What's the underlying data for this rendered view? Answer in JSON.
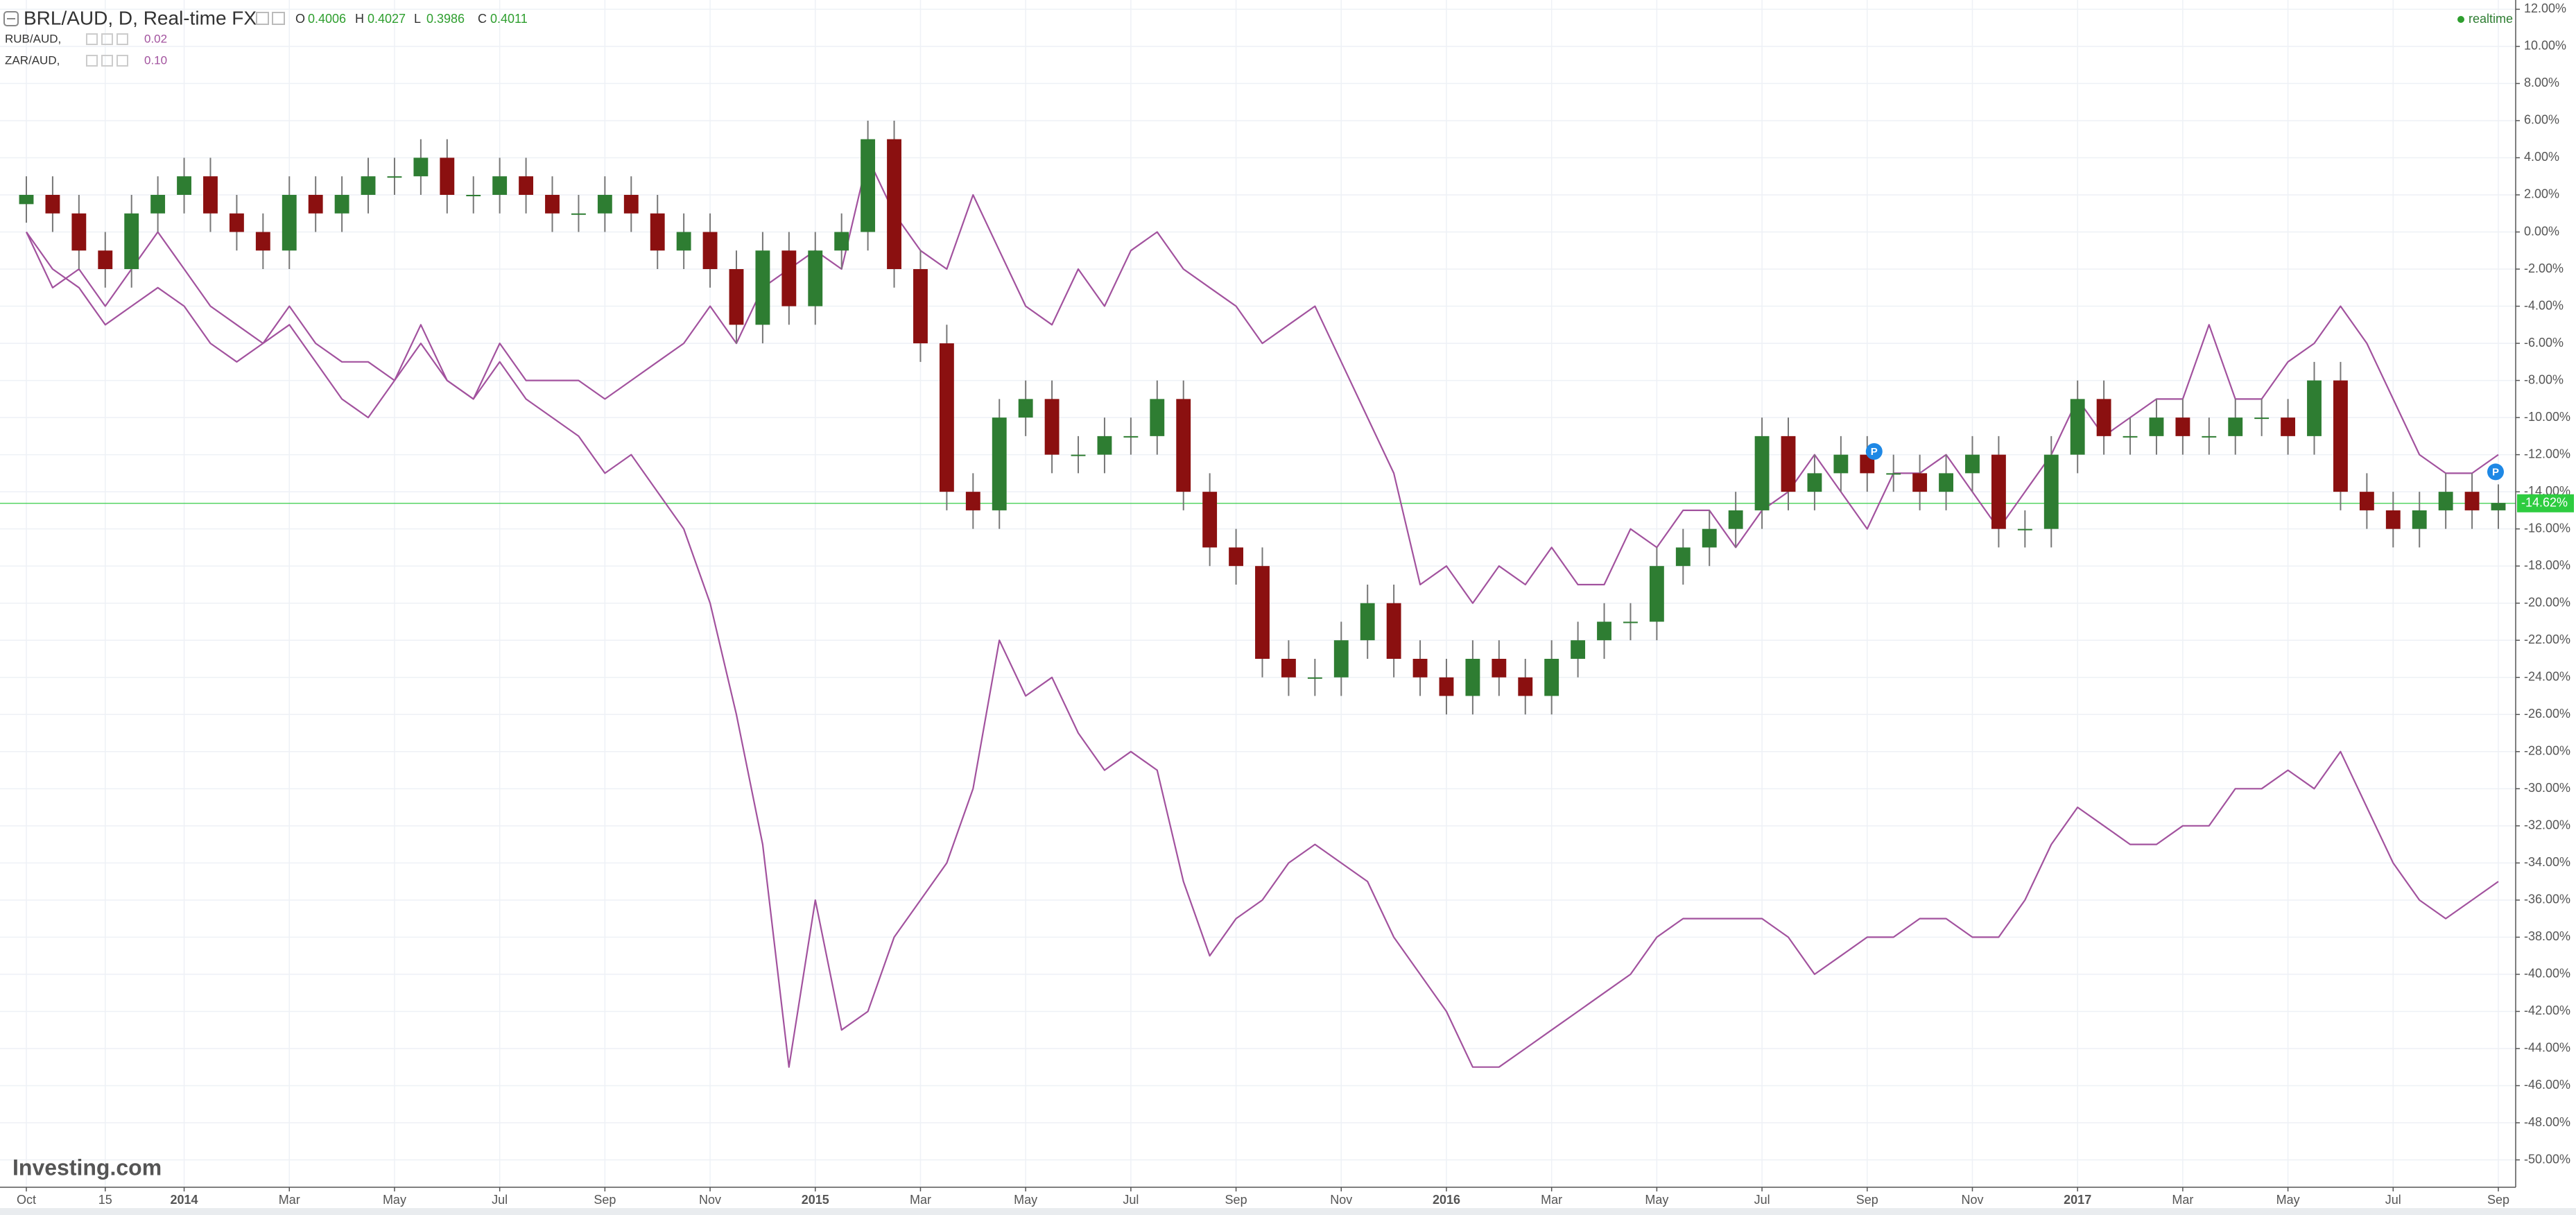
{
  "chart_data": {
    "type": "candlestick",
    "title": "BRL/AUD, D, Real-time FX",
    "ohlc": [
      {
        "label": "O",
        "value": 0.4006
      },
      {
        "label": "H",
        "value": 0.4027
      },
      {
        "label": "L",
        "value": 0.3986
      },
      {
        "label": "C",
        "value": 0.4011
      }
    ],
    "status": "realtime",
    "watermark": "Investing.com",
    "event_marker": "P",
    "categories": [
      "Oct",
      null,
      null,
      "15",
      null,
      null,
      "2014",
      null,
      null,
      null,
      "Mar",
      null,
      null,
      null,
      "May",
      null,
      null,
      null,
      "Jul",
      null,
      null,
      null,
      "Sep",
      null,
      null,
      null,
      "Nov",
      null,
      null,
      null,
      "2015",
      null,
      null,
      null,
      "Mar",
      null,
      null,
      null,
      "May",
      null,
      null,
      null,
      "Jul",
      null,
      null,
      null,
      "Sep",
      null,
      null,
      null,
      "Nov",
      null,
      null,
      null,
      "2016",
      null,
      null,
      null,
      "Mar",
      null,
      null,
      null,
      "May",
      null,
      null,
      null,
      "Jul",
      null,
      null,
      null,
      "Sep",
      null,
      null,
      null,
      "Nov",
      null,
      null,
      null,
      "2017",
      null,
      null,
      null,
      "Mar",
      null,
      null,
      null,
      "May",
      null,
      null,
      null,
      "Jul",
      null,
      null,
      null,
      "Sep"
    ],
    "series": [
      {
        "name": "BRL/AUD",
        "type": "candlestick",
        "up_color": "#2e7d32",
        "down_color": "#8b1010",
        "wick_color": "#777777",
        "open": [
          1.5,
          2,
          1,
          -1,
          -2,
          1,
          2,
          3,
          1,
          0,
          -1,
          2,
          1,
          2,
          3,
          3,
          4,
          2,
          2,
          3,
          2,
          1,
          1,
          2,
          1,
          -1,
          0,
          -2,
          -5,
          -1,
          -4,
          -1,
          0,
          5,
          -2,
          -6,
          -14,
          -15,
          -10,
          -9,
          -12,
          -12,
          -11,
          -11,
          -9,
          -14,
          -17,
          -18,
          -23,
          -24,
          -24,
          -22,
          -20,
          -23,
          -24,
          -25,
          -23,
          -24,
          -25,
          -23,
          -22,
          -21,
          -21,
          -18,
          -17,
          -16,
          -15,
          -11,
          -14,
          -13,
          -12,
          -13,
          -13,
          -14,
          -13,
          -12,
          -16,
          -16,
          -12,
          -9,
          -11,
          -11,
          -10,
          -11,
          -11,
          -10,
          -10,
          -11,
          -8,
          -14,
          -15,
          -16,
          -15,
          -14,
          -15
        ],
        "high": [
          3,
          3,
          2,
          0,
          2,
          3,
          4,
          4,
          2,
          1,
          3,
          3,
          3,
          4,
          4,
          5,
          5,
          3,
          4,
          4,
          3,
          2,
          3,
          3,
          2,
          1,
          1,
          -1,
          0,
          0,
          0,
          1,
          6,
          6,
          -1,
          -5,
          -13,
          -9,
          -8,
          -8,
          -11,
          -10,
          -10,
          -8,
          -8,
          -13,
          -16,
          -17,
          -22,
          -23,
          -21,
          -19,
          -19,
          -22,
          -23,
          -22,
          -22,
          -23,
          -22,
          -21,
          -20,
          -20,
          -17,
          -16,
          -15,
          -14,
          -10,
          -10,
          -12,
          -11,
          -11,
          -12,
          -12,
          -12,
          -11,
          -11,
          -15,
          -11,
          -8,
          -8,
          -10,
          -9,
          -9,
          -10,
          -9,
          -9,
          -9,
          -7,
          -7,
          -13,
          -14,
          -14,
          -13,
          -13,
          -13.6
        ],
        "low": [
          0.5,
          0,
          -2,
          -3,
          -3,
          0,
          1,
          0,
          -1,
          -2,
          -2,
          0,
          0,
          1,
          2,
          2,
          1,
          1,
          1,
          1,
          0,
          0,
          0,
          0,
          -2,
          -2,
          -3,
          -6,
          -6,
          -5,
          -5,
          -2,
          -1,
          -3,
          -7,
          -15,
          -16,
          -16,
          -11,
          -13,
          -13,
          -13,
          -12,
          -12,
          -15,
          -18,
          -19,
          -24,
          -25,
          -25,
          -25,
          -23,
          -24,
          -25,
          -26,
          -26,
          -25,
          -26,
          -26,
          -24,
          -23,
          -22,
          -22,
          -19,
          -18,
          -17,
          -16,
          -15,
          -15,
          -14,
          -14,
          -14,
          -15,
          -15,
          -14,
          -17,
          -17,
          -17,
          -13,
          -12,
          -12,
          -12,
          -12,
          -12,
          -12,
          -11,
          -12,
          -12,
          -15,
          -16,
          -17,
          -17,
          -16,
          -16,
          -16
        ],
        "close": [
          2,
          1,
          -1,
          -2,
          1,
          2,
          3,
          1,
          0,
          -1,
          2,
          1,
          2,
          3,
          3,
          4,
          2,
          2,
          3,
          2,
          1,
          1,
          2,
          1,
          -1,
          0,
          -2,
          -5,
          -1,
          -4,
          -1,
          0,
          5,
          -2,
          -6,
          -14,
          -15,
          -10,
          -9,
          -12,
          -12,
          -11,
          -11,
          -9,
          -14,
          -17,
          -18,
          -23,
          -24,
          -24,
          -22,
          -20,
          -23,
          -24,
          -25,
          -23,
          -24,
          -25,
          -23,
          -22,
          -21,
          -21,
          -18,
          -17,
          -16,
          -15,
          -11,
          -14,
          -13,
          -12,
          -13,
          -13,
          -14,
          -13,
          -12,
          -16,
          -16,
          -12,
          -9,
          -11,
          -11,
          -10,
          -11,
          -11,
          -10,
          -10,
          -11,
          -8,
          -14,
          -15,
          -16,
          -15,
          -14,
          -15,
          -14.6
        ]
      },
      {
        "name": "RUB/AUD,",
        "type": "line",
        "color": "#a2529e",
        "legend_value": 0.02,
        "values": [
          0,
          -2,
          -3,
          -5,
          -4,
          -3,
          -4,
          -6,
          -7,
          -6,
          -5,
          -7,
          -9,
          -10,
          -8,
          -6,
          -8,
          -9,
          -7,
          -9,
          -10,
          -11,
          -13,
          -12,
          -14,
          -16,
          -20,
          -26,
          -33,
          -45,
          -36,
          -43,
          -42,
          -38,
          -36,
          -34,
          -30,
          -22,
          -25,
          -24,
          -27,
          -29,
          -28,
          -29,
          -35,
          -39,
          -37,
          -36,
          -34,
          -33,
          -34,
          -35,
          -38,
          -40,
          -42,
          -45,
          -45,
          -44,
          -43,
          -42,
          -41,
          -40,
          -38,
          -37,
          -37,
          -37,
          -37,
          -38,
          -40,
          -39,
          -38,
          -38,
          -37,
          -37,
          -38,
          -38,
          -36,
          -33,
          -31,
          -32,
          -33,
          -33,
          -32,
          -32,
          -30,
          -30,
          -29,
          -30,
          -28,
          -31,
          -34,
          -36,
          -37,
          -36,
          -35
        ]
      },
      {
        "name": "ZAR/AUD,",
        "type": "line",
        "color": "#a2529e",
        "legend_value": "0.10",
        "values": [
          0,
          -3,
          -2,
          -4,
          -2,
          0,
          -2,
          -4,
          -5,
          -6,
          -4,
          -6,
          -7,
          -7,
          -8,
          -5,
          -8,
          -9,
          -6,
          -8,
          -8,
          -8,
          -9,
          -8,
          -7,
          -6,
          -4,
          -6,
          -3,
          -2,
          -1,
          -2,
          4,
          1,
          -1,
          -2,
          2,
          -1,
          -4,
          -5,
          -2,
          -4,
          -1,
          0,
          -2,
          -3,
          -4,
          -6,
          -5,
          -4,
          -7,
          -10,
          -13,
          -19,
          -18,
          -20,
          -18,
          -19,
          -17,
          -19,
          -19,
          -16,
          -17,
          -15,
          -15,
          -17,
          -15,
          -14,
          -12,
          -14,
          -16,
          -13,
          -13,
          -12,
          -14,
          -16,
          -14,
          -12,
          -9,
          -11,
          -10,
          -9,
          -9,
          -5,
          -9,
          -9,
          -7,
          -6,
          -4,
          -6,
          -9,
          -12,
          -13,
          -13,
          -12
        ]
      }
    ],
    "last_price": {
      "value": -14.62,
      "label": "-14.62%"
    },
    "last_price_color": "#2ecc40",
    "ylim": [
      -51.4,
      12.5
    ],
    "yticks": [
      {
        "value": 12,
        "label": "12.00%"
      },
      {
        "value": 10,
        "label": "10.00%"
      },
      {
        "value": 8,
        "label": "8.00%"
      },
      {
        "value": 6,
        "label": "6.00%"
      },
      {
        "value": 4,
        "label": "4.00%"
      },
      {
        "value": 2,
        "label": "2.00%"
      },
      {
        "value": 0,
        "label": "0.00%"
      },
      {
        "value": -2,
        "label": "-2.00%"
      },
      {
        "value": -4,
        "label": "-4.00%"
      },
      {
        "value": -6,
        "label": "-6.00%"
      },
      {
        "value": -8,
        "label": "-8.00%"
      },
      {
        "value": -10,
        "label": "-10.00%"
      },
      {
        "value": -12,
        "label": "-12.00%"
      },
      {
        "value": -14,
        "label": "-14.00%"
      },
      {
        "value": -16,
        "label": "-16.00%"
      },
      {
        "value": -18,
        "label": "-18.00%"
      },
      {
        "value": -20,
        "label": "-20.00%"
      },
      {
        "value": -22,
        "label": "-22.00%"
      },
      {
        "value": -24,
        "label": "-24.00%"
      },
      {
        "value": -26,
        "label": "-26.00%"
      },
      {
        "value": -28,
        "label": "-28.00%"
      },
      {
        "value": -30,
        "label": "-30.00%"
      },
      {
        "value": -32,
        "label": "-32.00%"
      },
      {
        "value": -34,
        "label": "-34.00%"
      },
      {
        "value": -36,
        "label": "-36.00%"
      },
      {
        "value": -38,
        "label": "-38.00%"
      },
      {
        "value": -40,
        "label": "-40.00%"
      },
      {
        "value": -42,
        "label": "-42.00%"
      },
      {
        "value": -44,
        "label": "-44.00%"
      },
      {
        "value": -46,
        "label": "-46.00%"
      },
      {
        "value": -48,
        "label": "-48.00%"
      },
      {
        "value": -50,
        "label": "-50.00%"
      }
    ],
    "grid": true
  }
}
